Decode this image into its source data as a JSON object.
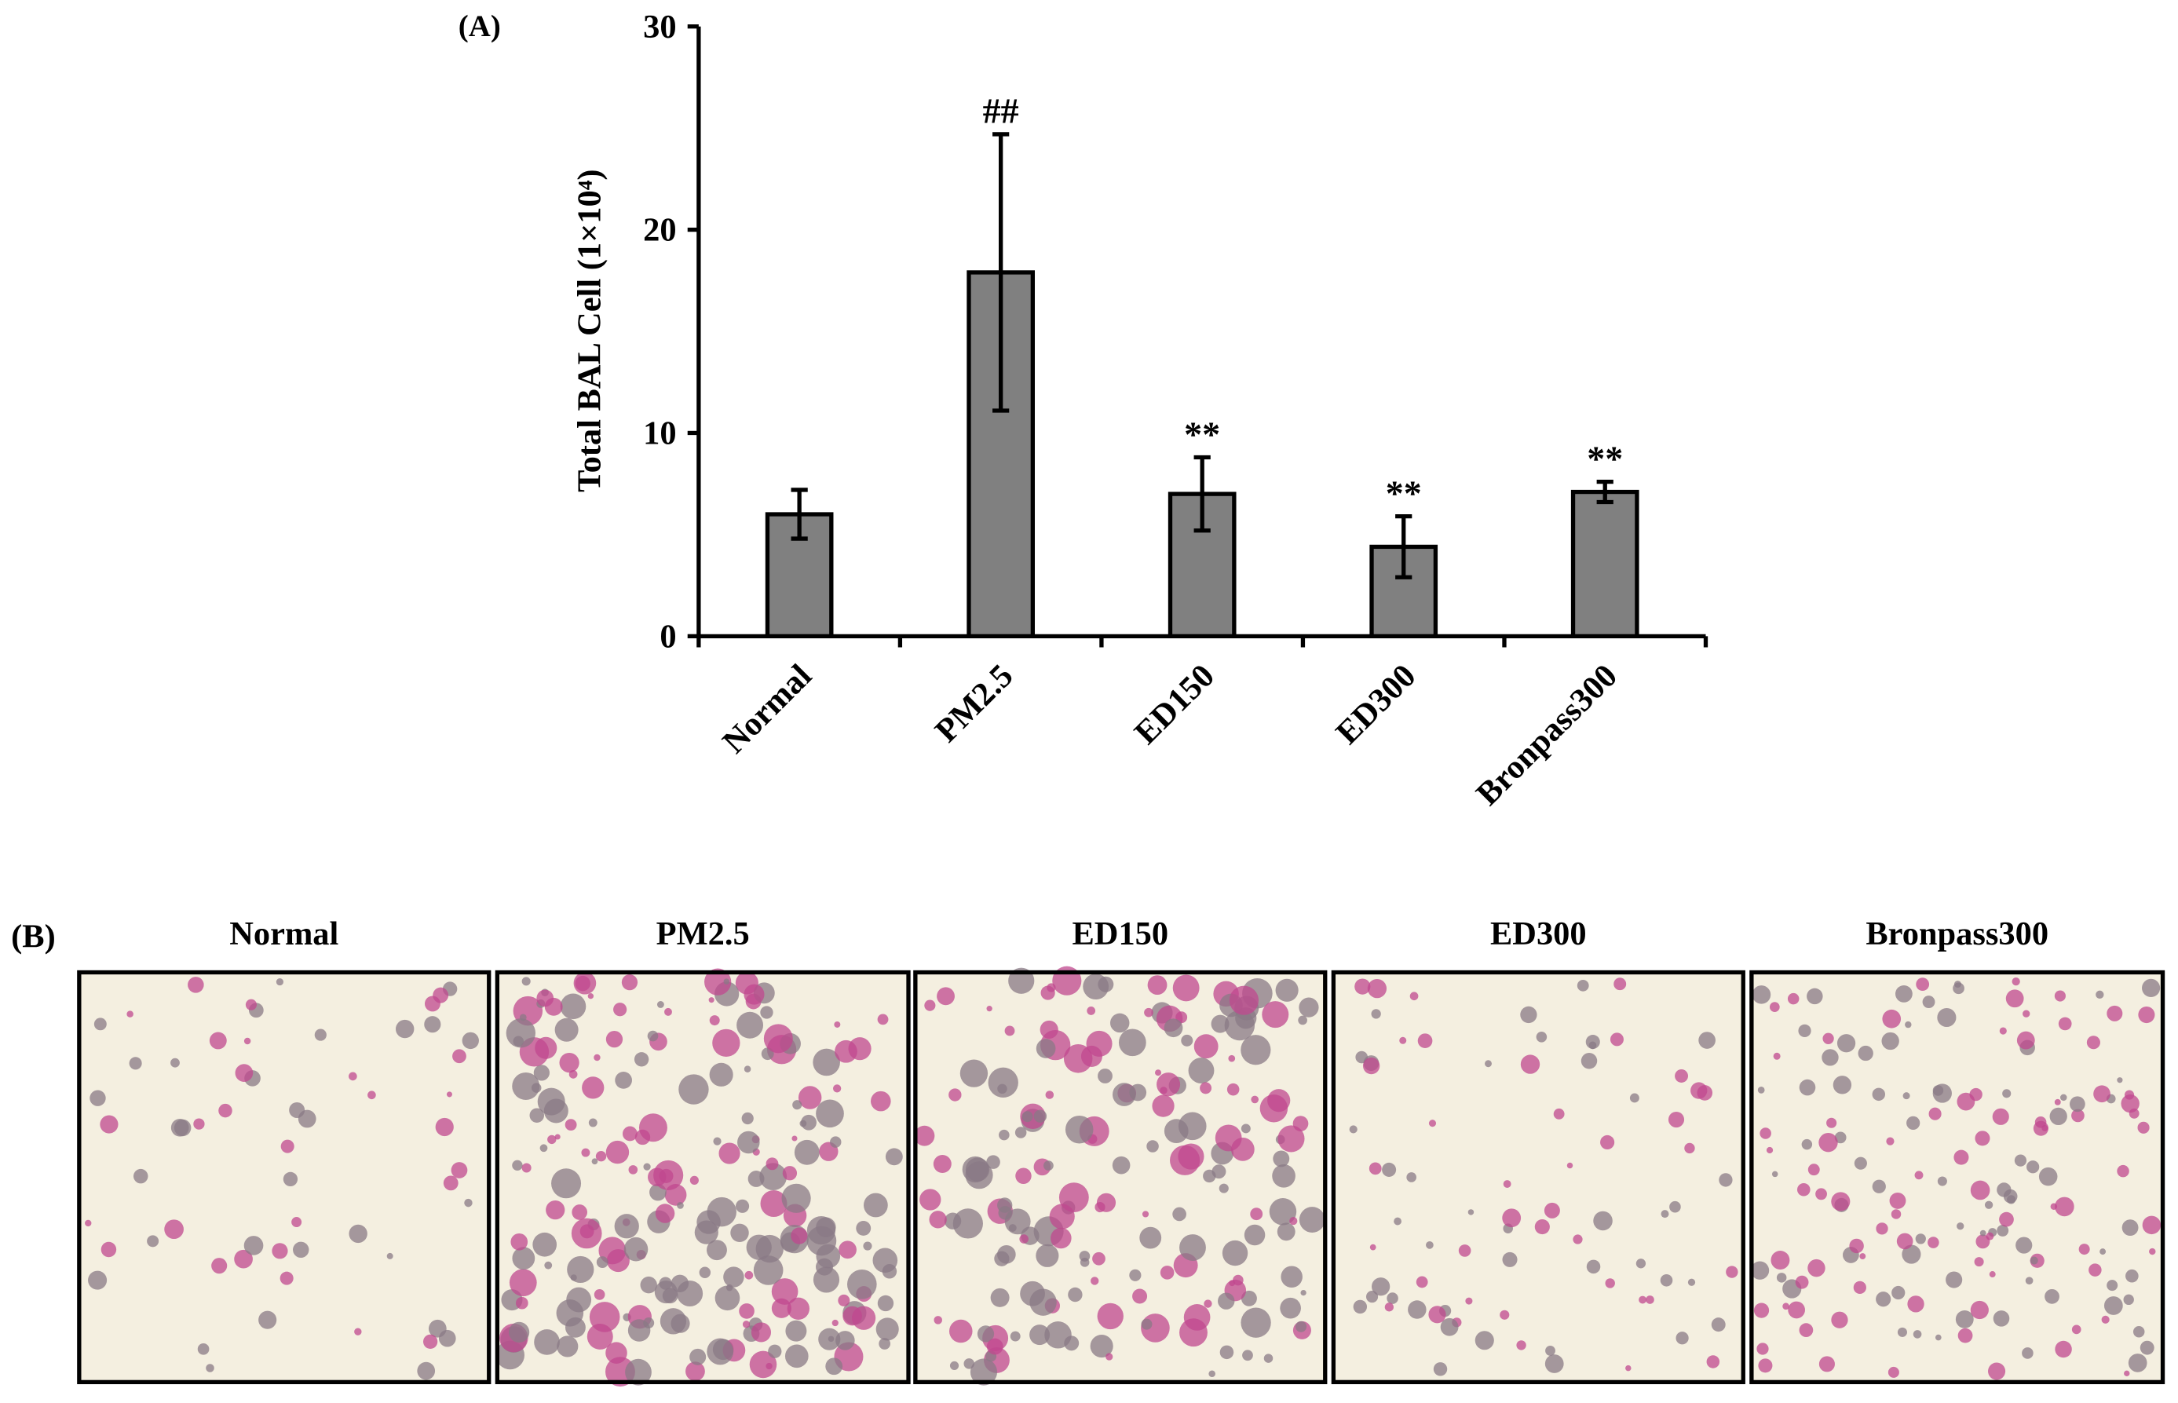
{
  "chart_data": {
    "type": "bar",
    "panel_label": "(A)",
    "ylabel": "Total BAL Cell (1×10⁴)",
    "categories": [
      "Normal",
      "PM2.5",
      "ED150",
      "ED300",
      "Bronpass300"
    ],
    "values": [
      6.0,
      17.9,
      7.0,
      4.4,
      7.1
    ],
    "errors": [
      1.2,
      6.8,
      1.8,
      1.5,
      0.5
    ],
    "color": "#808080",
    "ylim": [
      0,
      30
    ],
    "yticks": [
      0,
      10,
      20,
      30
    ],
    "annotations": [
      {
        "text": "##",
        "category": 1
      },
      {
        "text": "**",
        "category": 2
      },
      {
        "text": "**",
        "category": 3
      },
      {
        "text": "**",
        "category": 4
      }
    ]
  },
  "micrographs": {
    "panel_label": "(B)",
    "titles": [
      "Normal",
      "PM2.5",
      "ED150",
      "ED300",
      "Bronpass300"
    ]
  }
}
